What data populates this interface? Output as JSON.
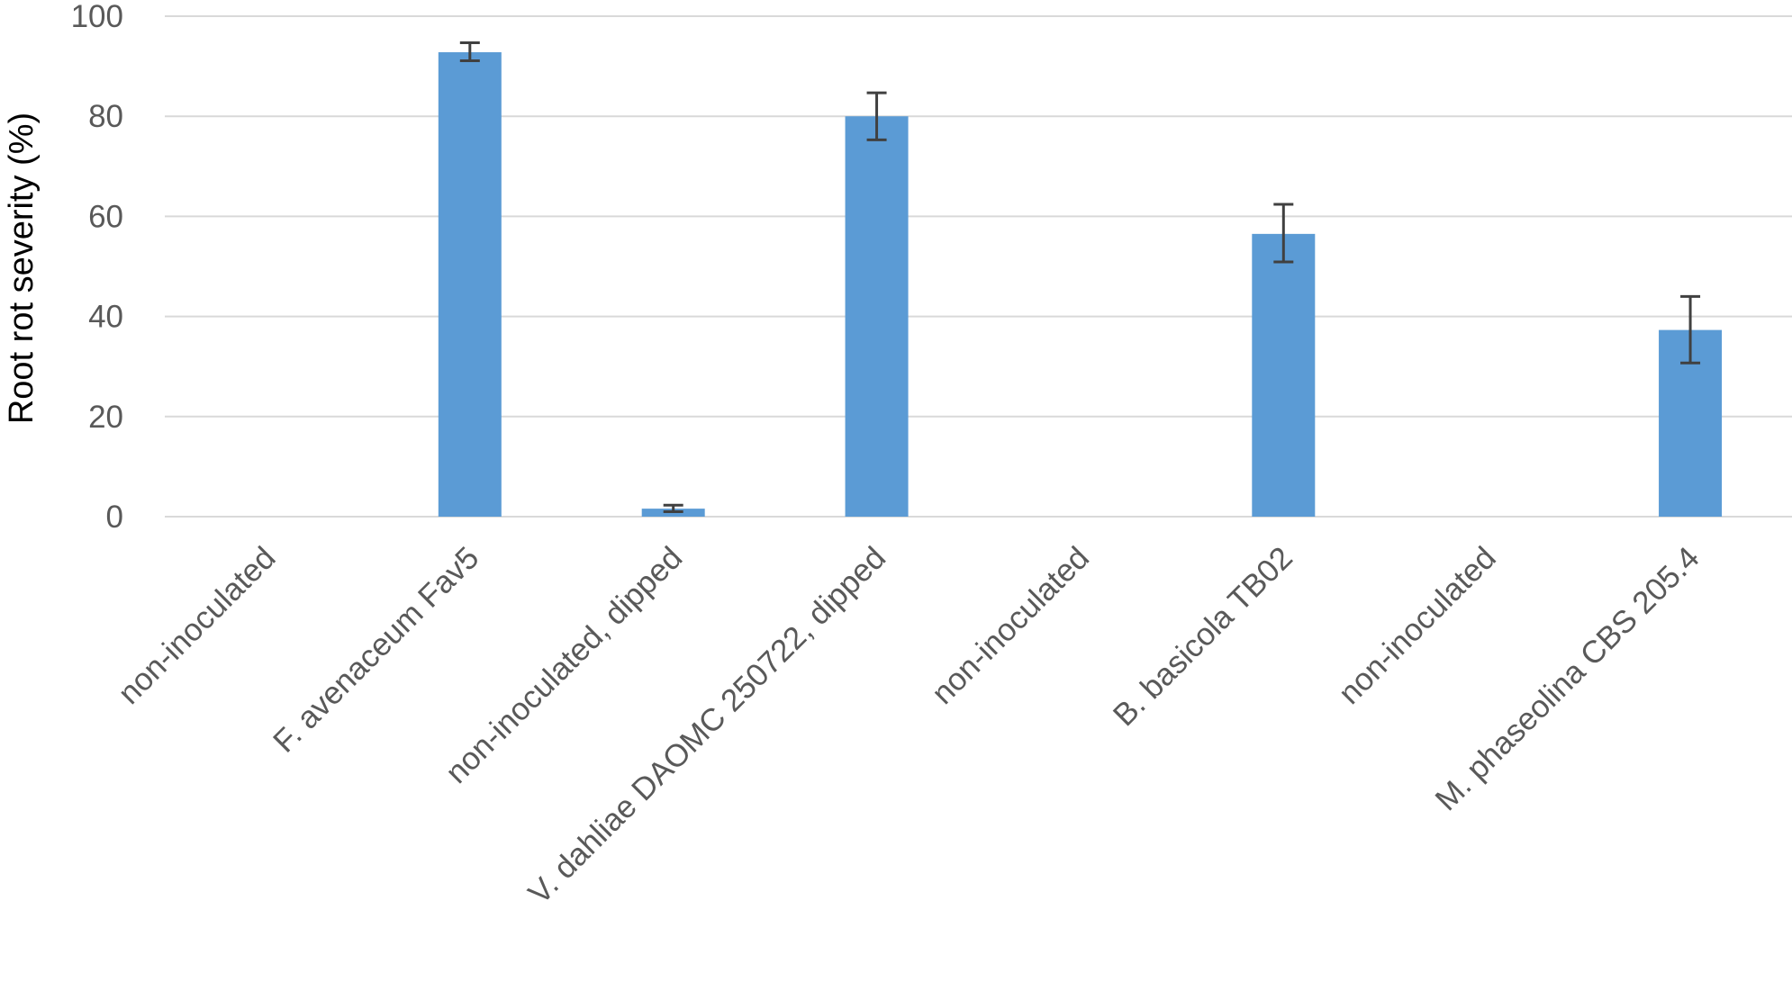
{
  "chart_data": {
    "type": "bar",
    "title": "",
    "xlabel": "",
    "ylabel": "Root rot severity (%)",
    "ylim": [
      0,
      100
    ],
    "yticks": [
      0,
      20,
      40,
      60,
      80,
      100
    ],
    "grid": true,
    "legend": "none",
    "categories": [
      "non-inoculated",
      "F. avenaceum Fav5",
      "non-inoculated, dipped",
      "V. dahliae DAOMC 250722, dipped",
      "non-inoculated",
      "B. basicola TB02",
      "non-inoculated",
      "M. phaseolina CBS 205.4"
    ],
    "values": [
      0,
      92.8,
      1.6,
      80.0,
      0,
      56.5,
      0,
      37.3
    ],
    "error_low": [
      0,
      91.1,
      1.0,
      75.3,
      0,
      50.9,
      0,
      30.7
    ],
    "error_high": [
      0,
      94.7,
      2.3,
      84.7,
      0,
      62.4,
      0,
      44.0
    ],
    "colors": {
      "bar": "#5b9bd5",
      "error_bar": "#404040",
      "grid": "#d9d9d9",
      "text": "#595959"
    }
  }
}
